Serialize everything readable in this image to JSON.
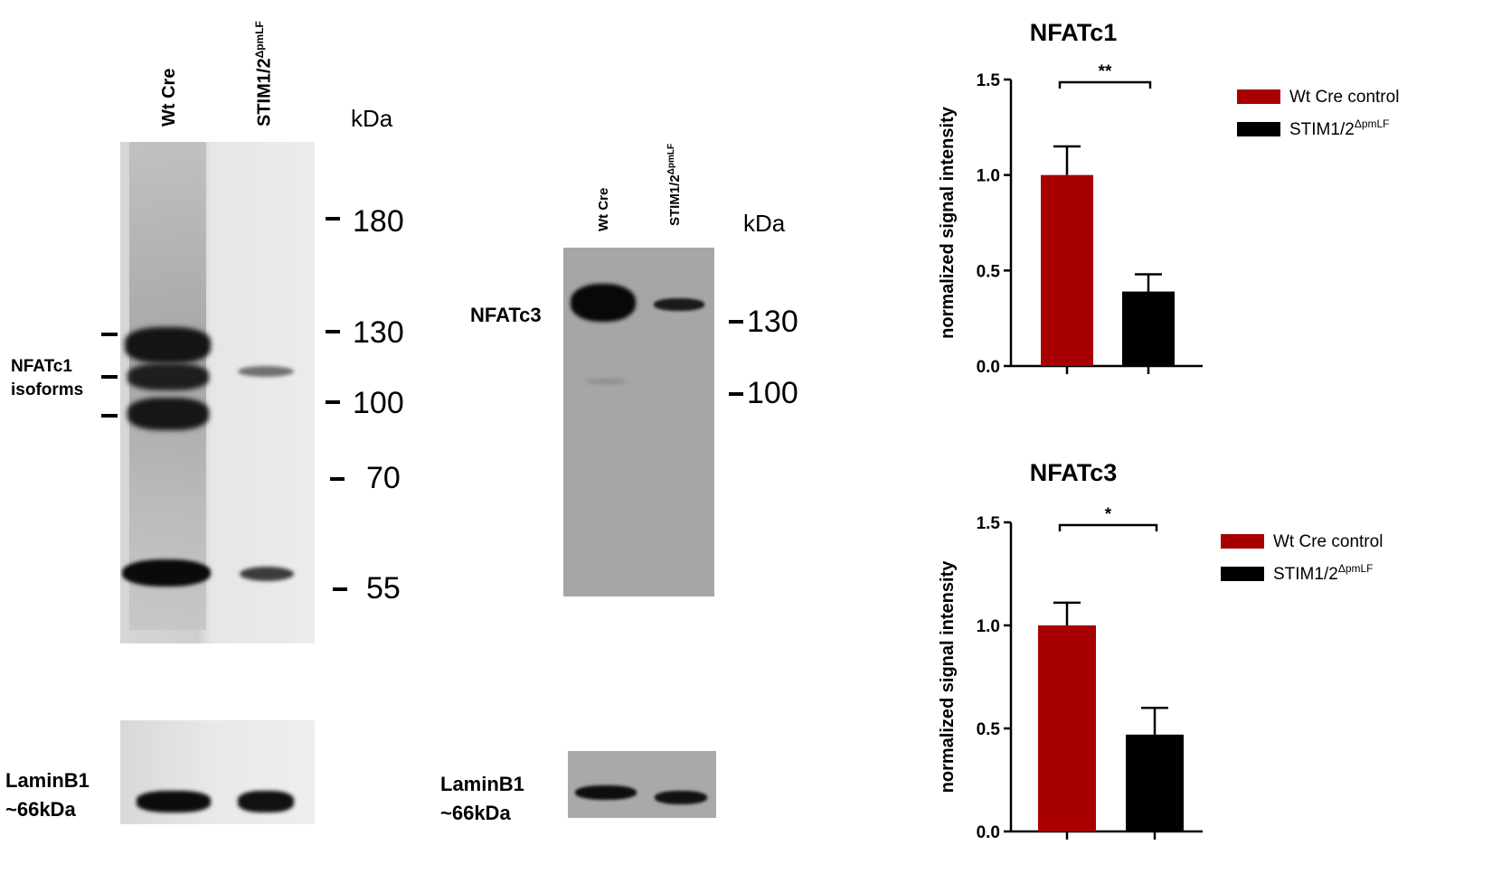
{
  "left_blot": {
    "lanes": [
      "Wt Cre",
      "STIM1/2"
    ],
    "lane2_superscript": "ΔpmLF",
    "unit": "kDa",
    "markers": [
      "180",
      "130",
      "100",
      "70",
      "55"
    ],
    "band_label_line1": "NFATc1",
    "band_label_line2": "isoforms",
    "loading_label_line1": "LaminB1",
    "loading_label_line2": "~66kDa"
  },
  "middle_blot": {
    "lanes": [
      "Wt Cre",
      "STIM1/2"
    ],
    "lane2_superscript": "ΔpmLF",
    "unit": "kDa",
    "markers": [
      "130",
      "100"
    ],
    "band_label": "NFATc3",
    "loading_label_line1": "LaminB1",
    "loading_label_line2": "~66kDa"
  },
  "chart_data": [
    {
      "type": "bar",
      "title": "NFATc1",
      "ylabel": "normalized signal intensity",
      "xlabel": "",
      "categories": [
        "Wt Cre control",
        "STIM1/2ΔpmLF"
      ],
      "values": [
        1.0,
        0.39
      ],
      "errors": [
        0.15,
        0.09
      ],
      "colors": [
        "#a80000",
        "#000000"
      ],
      "ylim": [
        0,
        1.5
      ],
      "yticks": [
        "0.0",
        "0.5",
        "1.0",
        "1.5"
      ],
      "significance": "**",
      "legend": [
        {
          "label": "Wt Cre control",
          "sup": "",
          "color": "#a80000"
        },
        {
          "label": "STIM1/2",
          "sup": "ΔpmLF",
          "color": "#000000"
        }
      ],
      "legend_position": "right"
    },
    {
      "type": "bar",
      "title": "NFATc3",
      "ylabel": "normalized signal intensity",
      "xlabel": "",
      "categories": [
        "Wt Cre control",
        "STIM1/2ΔpmLF"
      ],
      "values": [
        1.0,
        0.47
      ],
      "errors": [
        0.11,
        0.13
      ],
      "colors": [
        "#a80000",
        "#000000"
      ],
      "ylim": [
        0,
        1.5
      ],
      "yticks": [
        "0.0",
        "0.5",
        "1.0",
        "1.5"
      ],
      "significance": "*",
      "legend": [
        {
          "label": "Wt Cre control",
          "sup": "",
          "color": "#a80000"
        },
        {
          "label": "STIM1/2",
          "sup": "ΔpmLF",
          "color": "#000000"
        }
      ],
      "legend_position": "right"
    }
  ]
}
